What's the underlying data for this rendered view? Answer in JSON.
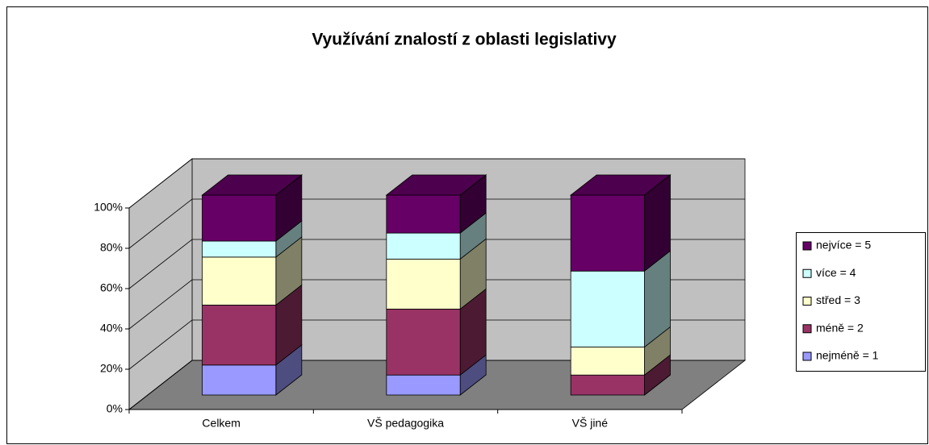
{
  "chart_data": {
    "type": "bar3d_stacked",
    "title": "Využívání znalostí z oblasti legislativy",
    "categories": [
      "Celkem",
      "VŠ pedagogika",
      "VŠ jiné"
    ],
    "series": [
      {
        "name": "nejméně = 1",
        "color": "#9999ff",
        "values": [
          15,
          10,
          0
        ]
      },
      {
        "name": "méně = 2",
        "color": "#993366",
        "values": [
          30,
          33,
          10
        ]
      },
      {
        "name": "střed = 3",
        "color": "#ffffcc",
        "values": [
          24,
          25,
          14
        ]
      },
      {
        "name": "více = 4",
        "color": "#ccffff",
        "values": [
          8,
          13,
          38
        ]
      },
      {
        "name": "nejvíce = 5",
        "color": "#660066",
        "values": [
          23,
          19,
          38
        ]
      }
    ],
    "ylim": [
      0,
      100
    ],
    "yticks": [
      {
        "value": 0,
        "label": "0%"
      },
      {
        "value": 20,
        "label": "20%"
      },
      {
        "value": 40,
        "label": "40%"
      },
      {
        "value": 60,
        "label": "60%"
      },
      {
        "value": 80,
        "label": "80%"
      },
      {
        "value": 100,
        "label": "100%"
      }
    ],
    "grid": true,
    "legend": "right"
  }
}
